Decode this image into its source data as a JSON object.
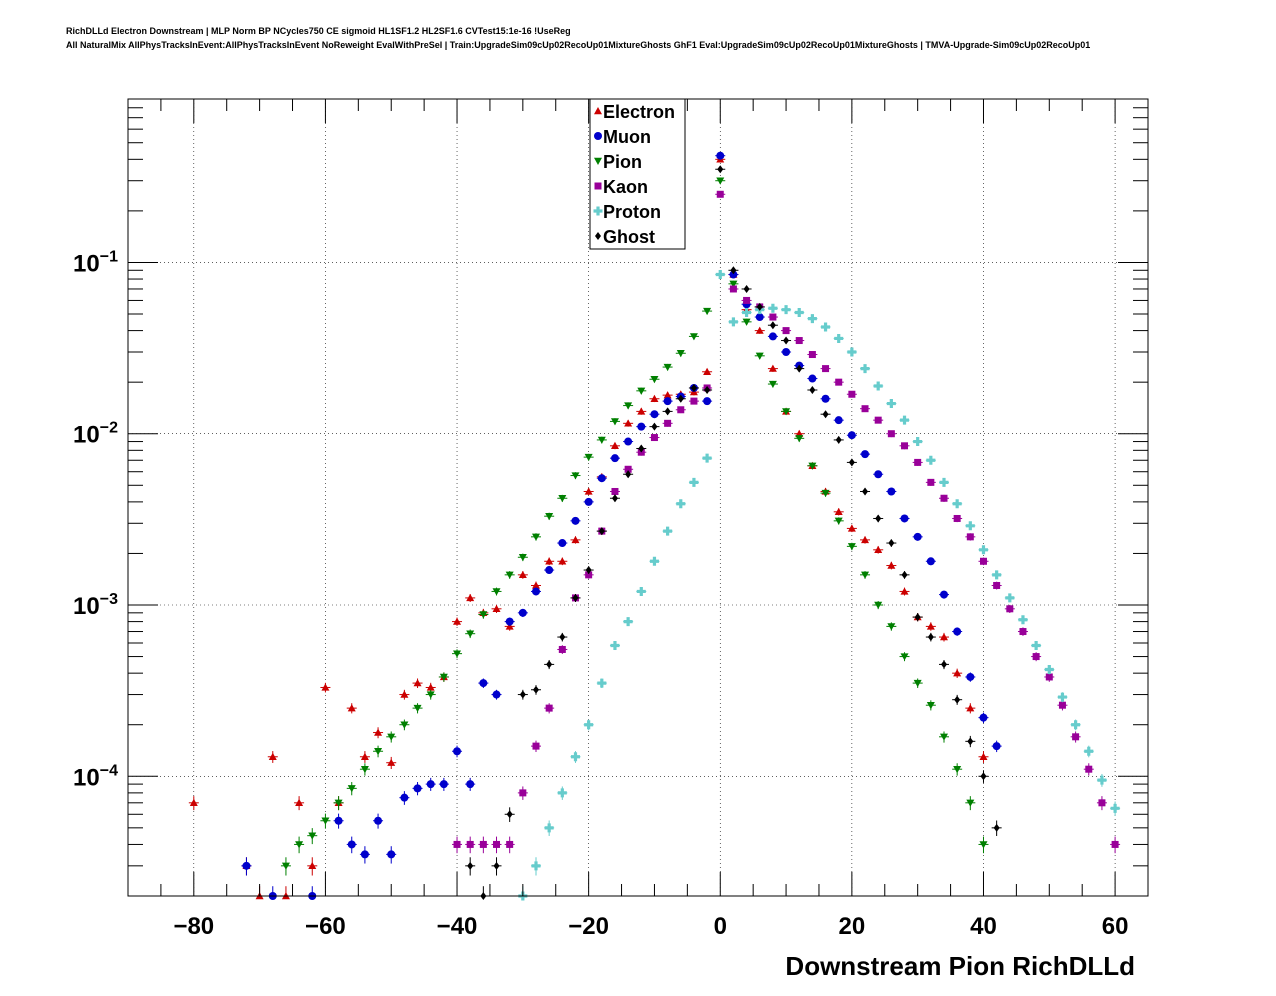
{
  "header": {
    "line1": "RichDLLd Electron Downstream | MLP Norm BP NCycles750 CE sigmoid HL1SF1.2 HL2SF1.6 CVTest15:1e-16 !UseReg",
    "line2": "All NaturalMix AllPhysTracksInEvent:AllPhysTracksInEvent NoReweight EvalWithPreSel | Train:UpgradeSim09cUp02RecoUp01MixtureGhosts GhF1 Eval:UpgradeSim09cUp02RecoUp01MixtureGhosts | TMVA-Upgrade-Sim09cUp02RecoUp01"
  },
  "chart_data": {
    "type": "scatter",
    "title": "",
    "xlabel": "Downstream Pion RichDLLd",
    "ylabel": "",
    "xlim": [
      -90,
      65
    ],
    "ylim": [
      2e-05,
      0.9
    ],
    "ylog": true,
    "grid": true,
    "legend_position": "top-center",
    "x_ticks": [
      -80,
      -60,
      -40,
      -20,
      0,
      20,
      40,
      60
    ],
    "y_ticks": [
      {
        "value": 0.1,
        "base": "10",
        "exp": "−1"
      },
      {
        "value": 0.01,
        "base": "10",
        "exp": "−2"
      },
      {
        "value": 0.001,
        "base": "10",
        "exp": "−3"
      },
      {
        "value": 0.0001,
        "base": "10",
        "exp": "−4"
      }
    ],
    "series": [
      {
        "name": "Electron",
        "color": "#cc0000",
        "marker": "triangle-up",
        "x": [
          -80,
          -72,
          -70,
          -68,
          -66,
          -64,
          -62,
          -60,
          -58,
          -56,
          -54,
          -52,
          -50,
          -48,
          -46,
          -44,
          -42,
          -40,
          -38,
          -36,
          -34,
          -32,
          -30,
          -28,
          -26,
          -24,
          -22,
          -20,
          -18,
          -16,
          -14,
          -12,
          -10,
          -8,
          -6,
          -4,
          -2,
          0,
          2,
          4,
          6,
          8,
          10,
          12,
          14,
          16,
          18,
          20,
          22,
          24,
          26,
          28,
          30,
          32,
          34,
          36,
          38,
          40
        ],
        "y": [
          7e-05,
          3e-05,
          2e-05,
          0.00013,
          2e-05,
          7e-05,
          3e-05,
          0.00033,
          7e-05,
          0.00025,
          0.00013,
          0.00018,
          0.00012,
          0.0003,
          0.00035,
          0.00033,
          0.00038,
          0.0008,
          0.0011,
          0.0009,
          0.00095,
          0.00075,
          0.0015,
          0.0013,
          0.0018,
          0.0018,
          0.0024,
          0.0046,
          0.0056,
          0.0085,
          0.0115,
          0.0135,
          0.016,
          0.0168,
          0.017,
          0.0175,
          0.023,
          0.4,
          0.085,
          0.053,
          0.04,
          0.024,
          0.0135,
          0.01,
          0.0065,
          0.0046,
          0.0035,
          0.0028,
          0.0024,
          0.0021,
          0.0017,
          0.0012,
          0.00085,
          0.00075,
          0.00065,
          0.0004,
          0.00025,
          0.00013
        ]
      },
      {
        "name": "Muon",
        "color": "#0000cc",
        "marker": "circle",
        "x": [
          -72,
          -68,
          -62,
          -58,
          -56,
          -54,
          -52,
          -50,
          -48,
          -46,
          -44,
          -42,
          -40,
          -38,
          -36,
          -34,
          -32,
          -30,
          -28,
          -26,
          -24,
          -22,
          -20,
          -18,
          -16,
          -14,
          -12,
          -10,
          -8,
          -6,
          -4,
          -2,
          0,
          2,
          4,
          6,
          8,
          10,
          12,
          14,
          16,
          18,
          20,
          22,
          24,
          26,
          28,
          30,
          32,
          34,
          36,
          38,
          40,
          42
        ],
        "y": [
          3e-05,
          2e-05,
          2e-05,
          5.5e-05,
          4e-05,
          3.5e-05,
          5.5e-05,
          3.5e-05,
          7.5e-05,
          8.5e-05,
          9e-05,
          9e-05,
          0.00014,
          9e-05,
          0.00035,
          0.0003,
          0.0008,
          0.0009,
          0.0012,
          0.0016,
          0.0023,
          0.0031,
          0.004,
          0.0055,
          0.0072,
          0.009,
          0.011,
          0.013,
          0.0155,
          0.0165,
          0.0185,
          0.0155,
          0.42,
          0.085,
          0.057,
          0.048,
          0.037,
          0.03,
          0.025,
          0.021,
          0.016,
          0.012,
          0.0098,
          0.0076,
          0.0058,
          0.0046,
          0.0032,
          0.0025,
          0.0018,
          0.00115,
          0.0007,
          0.00038,
          0.00022,
          0.00015
        ]
      },
      {
        "name": "Pion",
        "color": "#008000",
        "marker": "triangle-down",
        "x": [
          -66,
          -64,
          -62,
          -60,
          -58,
          -56,
          -54,
          -52,
          -50,
          -48,
          -46,
          -44,
          -42,
          -40,
          -38,
          -36,
          -34,
          -32,
          -30,
          -28,
          -26,
          -24,
          -22,
          -20,
          -18,
          -16,
          -14,
          -12,
          -10,
          -8,
          -6,
          -4,
          -2,
          0,
          2,
          4,
          6,
          8,
          10,
          12,
          14,
          16,
          18,
          20,
          22,
          24,
          26,
          28,
          30,
          32,
          34,
          36,
          38,
          40
        ],
        "y": [
          3e-05,
          4e-05,
          4.5e-05,
          5.5e-05,
          7e-05,
          8.5e-05,
          0.00011,
          0.00014,
          0.00017,
          0.0002,
          0.00025,
          0.0003,
          0.00038,
          0.00052,
          0.00068,
          0.00088,
          0.0012,
          0.0015,
          0.0019,
          0.0025,
          0.0033,
          0.0042,
          0.0057,
          0.0073,
          0.0092,
          0.0118,
          0.0146,
          0.0178,
          0.0208,
          0.0245,
          0.0295,
          0.037,
          0.052,
          0.3,
          0.075,
          0.045,
          0.0285,
          0.0195,
          0.0135,
          0.0094,
          0.0065,
          0.0045,
          0.0031,
          0.0022,
          0.0015,
          0.001,
          0.00075,
          0.0005,
          0.00035,
          0.00026,
          0.00017,
          0.00011,
          7e-05,
          4e-05
        ]
      },
      {
        "name": "Kaon",
        "color": "#990099",
        "marker": "square",
        "x": [
          -40,
          -38,
          -36,
          -34,
          -32,
          -30,
          -28,
          -26,
          -24,
          -22,
          -20,
          -18,
          -16,
          -14,
          -12,
          -10,
          -8,
          -6,
          -4,
          -2,
          0,
          2,
          4,
          6,
          8,
          10,
          12,
          14,
          16,
          18,
          20,
          22,
          24,
          26,
          28,
          30,
          32,
          34,
          36,
          38,
          40,
          42,
          44,
          46,
          48,
          50,
          52,
          54,
          56,
          58,
          60
        ],
        "y": [
          4e-05,
          4e-05,
          4e-05,
          4e-05,
          4e-05,
          8e-05,
          0.00015,
          0.00025,
          0.00055,
          0.0011,
          0.0015,
          0.0027,
          0.0046,
          0.0062,
          0.0078,
          0.0095,
          0.0115,
          0.0138,
          0.0155,
          0.0185,
          0.25,
          0.07,
          0.06,
          0.055,
          0.048,
          0.04,
          0.035,
          0.029,
          0.024,
          0.02,
          0.017,
          0.014,
          0.012,
          0.01,
          0.0085,
          0.0068,
          0.0052,
          0.0042,
          0.0032,
          0.0025,
          0.0018,
          0.0013,
          0.00095,
          0.0007,
          0.0005,
          0.00038,
          0.00026,
          0.00017,
          0.00011,
          7e-05,
          4e-05
        ]
      },
      {
        "name": "Proton",
        "color": "#66cccc",
        "marker": "cross",
        "x": [
          -30,
          -28,
          -26,
          -24,
          -22,
          -20,
          -18,
          -16,
          -14,
          -12,
          -10,
          -8,
          -6,
          -4,
          -2,
          0,
          2,
          4,
          6,
          8,
          10,
          12,
          14,
          16,
          18,
          20,
          22,
          24,
          26,
          28,
          30,
          32,
          34,
          36,
          38,
          40,
          42,
          44,
          46,
          48,
          50,
          52,
          54,
          56,
          58,
          60
        ],
        "y": [
          2e-05,
          3e-05,
          5e-05,
          8e-05,
          0.00013,
          0.0002,
          0.00035,
          0.00058,
          0.0008,
          0.0012,
          0.0018,
          0.0027,
          0.0039,
          0.0052,
          0.0072,
          0.085,
          0.045,
          0.051,
          0.053,
          0.054,
          0.053,
          0.051,
          0.047,
          0.042,
          0.036,
          0.03,
          0.024,
          0.019,
          0.015,
          0.012,
          0.009,
          0.007,
          0.0052,
          0.0039,
          0.0029,
          0.0021,
          0.0015,
          0.0011,
          0.00082,
          0.00058,
          0.00042,
          0.00029,
          0.0002,
          0.00014,
          9.5e-05,
          6.5e-05
        ]
      },
      {
        "name": "Ghost",
        "color": "#000000",
        "marker": "diamond",
        "x": [
          -38,
          -36,
          -34,
          -32,
          -30,
          -28,
          -26,
          -24,
          -22,
          -20,
          -18,
          -16,
          -14,
          -12,
          -10,
          -8,
          -6,
          -4,
          -2,
          0,
          2,
          4,
          6,
          8,
          10,
          12,
          14,
          16,
          18,
          20,
          22,
          24,
          26,
          28,
          30,
          32,
          34,
          36,
          38,
          40,
          42
        ],
        "y": [
          3e-05,
          2e-05,
          3e-05,
          6e-05,
          0.0003,
          0.00032,
          0.00045,
          0.00065,
          0.0011,
          0.0016,
          0.0027,
          0.0042,
          0.0058,
          0.0082,
          0.011,
          0.0135,
          0.016,
          0.0185,
          0.018,
          0.35,
          0.09,
          0.07,
          0.055,
          0.043,
          0.035,
          0.024,
          0.018,
          0.013,
          0.0092,
          0.0068,
          0.0046,
          0.0032,
          0.0023,
          0.0015,
          0.00085,
          0.00065,
          0.00045,
          0.00028,
          0.00016,
          0.0001,
          5e-05
        ]
      }
    ]
  }
}
